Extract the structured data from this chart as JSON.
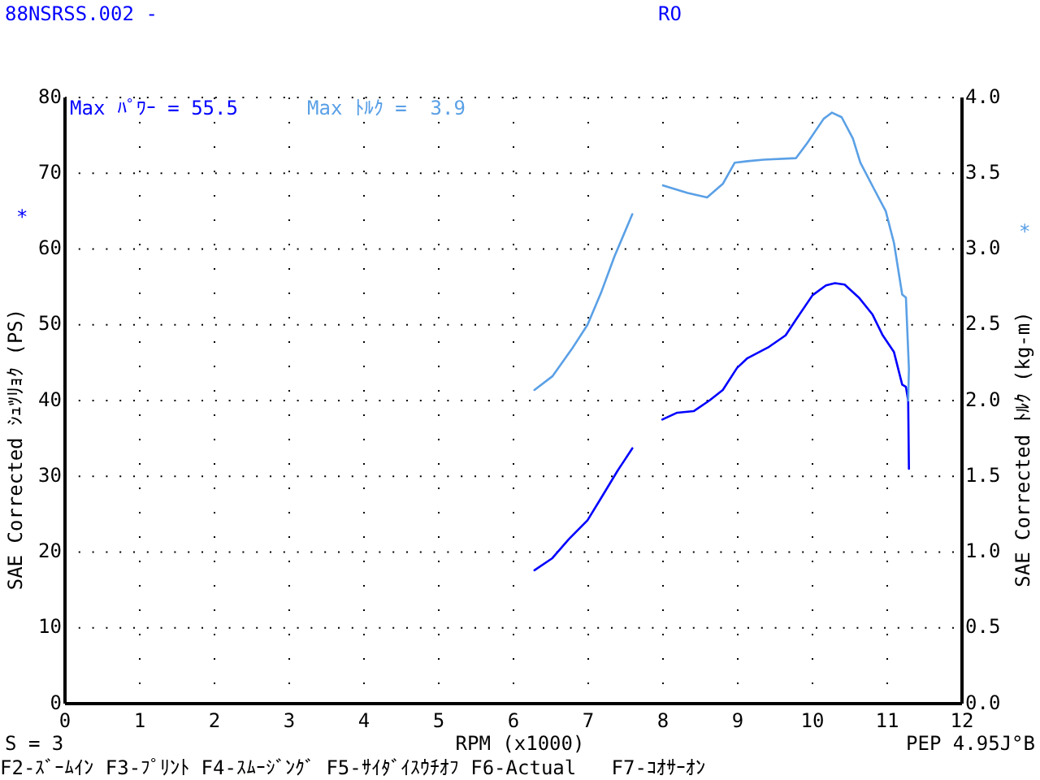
{
  "chart_data": {
    "type": "line",
    "title": "88NSRSS.002 -",
    "subtitle": "RO",
    "xlabel": "RPM (x1000)",
    "ylabel": "SAE Corrected ｼｭﾂﾘｮｸ (PS)",
    "y2label": "SAE Corrected ﾄﾙｸ (kg-m)",
    "annotations": [
      "Max ﾊﾟﾜｰ = 55.5",
      "Max ﾄﾙｸ =  3.9",
      "*",
      "*",
      "S = 3",
      "PEP 4.95J°B",
      "F2-ｽﾞｰﾑｲﾝ F3-ﾌﾟﾘﾝﾄ F4-ｽﾑｰｼﾞﾝｸﾞ F5-ｻｲﾀﾞｲｽｳﾁｵﾌ F6-Actual   F7-ｺｵｻｰｵﾝ"
    ],
    "series": [
      {
        "color": "#0000ff",
        "x": [
          6.28,
          6.52,
          6.74,
          6.99,
          7.17,
          7.39,
          7.59
        ],
        "values": [
          17.6,
          19.2,
          21.7,
          24.2,
          27.1,
          30.7,
          33.7
        ]
      },
      {
        "color": "#5aa0e6",
        "axis": "y2",
        "x": [
          6.28,
          6.52,
          6.78,
          6.99,
          7.17,
          7.35,
          7.59
        ],
        "values": [
          2.07,
          2.16,
          2.34,
          2.5,
          2.71,
          2.95,
          3.23
        ]
      },
      {
        "color": "#0000ff",
        "x": [
          7.99,
          8.19,
          8.41,
          8.62,
          8.8,
          8.99,
          9.13,
          9.42,
          9.64,
          9.78,
          10.0,
          10.18,
          10.3,
          10.43,
          10.62,
          10.8,
          10.94,
          11.09,
          11.2,
          11.25,
          11.28,
          11.29
        ],
        "values": [
          37.5,
          38.4,
          38.6,
          40.0,
          41.4,
          44.3,
          45.6,
          47.1,
          48.6,
          50.7,
          53.9,
          55.2,
          55.5,
          55.3,
          53.6,
          51.4,
          48.6,
          46.4,
          42.1,
          41.8,
          40.0,
          31.0
        ]
      },
      {
        "color": "#5aa0e6",
        "axis": "y2",
        "x": [
          8.0,
          8.33,
          8.59,
          8.8,
          8.96,
          9.13,
          9.35,
          9.78,
          9.93,
          10.15,
          10.26,
          10.39,
          10.54,
          10.64,
          10.83,
          10.98,
          11.09,
          11.2,
          11.25,
          11.29,
          11.28
        ],
        "values": [
          3.42,
          3.37,
          3.34,
          3.43,
          3.57,
          3.58,
          3.59,
          3.6,
          3.7,
          3.86,
          3.9,
          3.87,
          3.73,
          3.57,
          3.39,
          3.25,
          3.04,
          2.7,
          2.68,
          2.21,
          2.0
        ]
      }
    ],
    "xlim": [
      0,
      12
    ],
    "xticks": [
      0,
      1,
      2,
      3,
      4,
      5,
      6,
      7,
      8,
      9,
      10,
      11,
      12
    ],
    "ylim": [
      0,
      80
    ],
    "yticks": [
      0,
      10,
      20,
      30,
      40,
      50,
      60,
      70,
      80
    ],
    "y2lim": [
      0,
      4
    ],
    "y2ticks": [
      {
        "value": 0,
        "label": "0.0"
      },
      {
        "value": 0.5,
        "label": "0.5"
      },
      {
        "value": 1,
        "label": "1.0"
      },
      {
        "value": 1.5,
        "label": "1.5"
      },
      {
        "value": 2,
        "label": "2.0"
      },
      {
        "value": 2.5,
        "label": "2.5"
      },
      {
        "value": 3,
        "label": "3.0"
      },
      {
        "value": 3.5,
        "label": "3.5"
      },
      {
        "value": 4,
        "label": "4.0"
      }
    ],
    "grid": true,
    "marker": "none",
    "line_style": "solid"
  }
}
